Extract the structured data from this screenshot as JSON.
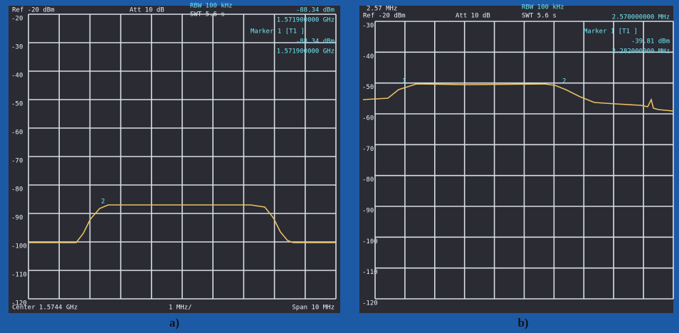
{
  "panels": [
    {
      "header": {
        "ref": "Ref -20 dBm",
        "att": "Att 10 dB",
        "rbw": "RBW 100 kHz",
        "swt": "SWT 5.6 s",
        "level": "-88.34 dBm",
        "freq": "1.571900000 GHz"
      },
      "marker_box": {
        "title": "Marker 1 [T1 ]",
        "level": "-88.34 dBm",
        "freq": "1.571900000 GHz"
      },
      "y_labels": [
        "-20",
        "-30",
        "-40",
        "-50",
        "-60",
        "-70",
        "-80",
        "-90",
        "-100",
        "-110",
        "-120"
      ],
      "trace_markers": [
        "2"
      ],
      "footer": {
        "center": "Center 1.5744 GHz",
        "div": "1 MHz/",
        "span": "Span 10 MHz"
      },
      "caption": "a)"
    },
    {
      "header": {
        "top": "2.57 MHz",
        "ref": "Ref -20 dBm",
        "att": "Att 10 dB",
        "rbw": "RBW 100 kHz",
        "swt": "SWT 5.6 s",
        "freq": "2.570000000 MHz"
      },
      "marker_box": {
        "title": "Marker 1 [T1 ]",
        "level": "-39.81 dBm",
        "freq": "2.282000000 MHz"
      },
      "y_labels": [
        "-30",
        "-40",
        "-50",
        "-60",
        "-70",
        "-80",
        "-90",
        "-100",
        "-110",
        "-120"
      ],
      "trace_markers": [
        "1",
        "2"
      ],
      "caption": "b)"
    }
  ]
}
